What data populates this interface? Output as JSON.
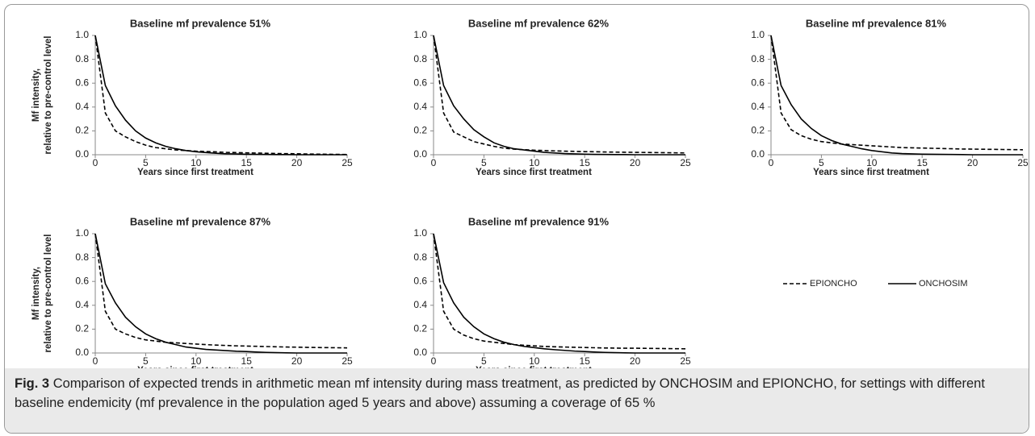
{
  "chart_data": [
    {
      "type": "line",
      "title": "Baseline mf prevalence 51%",
      "xlabel": "Years since first treatment",
      "ylabel": [
        "Mf intensity,",
        "relative to pre-control level"
      ],
      "x": [
        0,
        1,
        2,
        3,
        4,
        5,
        6,
        7,
        8,
        9,
        10,
        11,
        12,
        13,
        14,
        15,
        16,
        17,
        18,
        19,
        20,
        21,
        22,
        23,
        24,
        25
      ],
      "series": [
        {
          "name": "EPIONCHO",
          "color": "#000000",
          "linestyle": "dashed",
          "values": [
            1,
            0.35,
            0.2,
            0.15,
            0.11,
            0.08,
            0.06,
            0.05,
            0.04,
            0.035,
            0.03,
            0.027,
            0.024,
            0.02,
            0.018,
            0.016,
            0.014,
            0.012,
            0.01,
            0.009,
            0.008,
            0.006,
            0.005,
            0.004,
            0.003,
            0.002
          ]
        },
        {
          "name": "ONCHOSIM",
          "color": "#000000",
          "linestyle": "solid",
          "values": [
            1,
            0.58,
            0.41,
            0.29,
            0.2,
            0.14,
            0.1,
            0.07,
            0.05,
            0.035,
            0.025,
            0.018,
            0.012,
            0.008,
            0.006,
            0.004,
            0.003,
            0.002,
            0.001,
            0.001,
            0,
            0,
            0,
            0,
            0,
            0
          ]
        }
      ],
      "xlim": [
        0,
        25
      ],
      "xticks": [
        0,
        5,
        10,
        15,
        20,
        25
      ],
      "ylim": [
        0,
        1
      ],
      "yticks": [
        {
          "value": 0,
          "label": "0.0"
        },
        0.2,
        0.4,
        0.6,
        0.8,
        {
          "value": 1,
          "label": "1.0"
        }
      ]
    },
    {
      "type": "line",
      "title": "Baseline mf prevalence 62%",
      "xlabel": "Years since first treatment",
      "x": [
        0,
        1,
        2,
        3,
        4,
        5,
        6,
        7,
        8,
        9,
        10,
        11,
        12,
        13,
        14,
        15,
        16,
        17,
        18,
        19,
        20,
        21,
        22,
        23,
        24,
        25
      ],
      "series": [
        {
          "name": "EPIONCHO",
          "color": "#000000",
          "linestyle": "dashed",
          "values": [
            1,
            0.35,
            0.19,
            0.15,
            0.11,
            0.09,
            0.07,
            0.055,
            0.047,
            0.042,
            0.038,
            0.035,
            0.032,
            0.03,
            0.028,
            0.026,
            0.025,
            0.023,
            0.022,
            0.021,
            0.02,
            0.019,
            0.018,
            0.017,
            0.016,
            0.015
          ]
        },
        {
          "name": "ONCHOSIM",
          "color": "#000000",
          "linestyle": "solid",
          "values": [
            1,
            0.58,
            0.41,
            0.3,
            0.21,
            0.15,
            0.1,
            0.07,
            0.05,
            0.04,
            0.03,
            0.02,
            0.015,
            0.01,
            0.007,
            0.005,
            0.003,
            0.002,
            0.001,
            0.001,
            0,
            0,
            0,
            0,
            0,
            0
          ]
        }
      ],
      "xlim": [
        0,
        25
      ],
      "xticks": [
        0,
        5,
        10,
        15,
        20,
        25
      ],
      "ylim": [
        0,
        1
      ],
      "yticks": [
        {
          "value": 0,
          "label": "0.0"
        },
        0.2,
        0.4,
        0.6,
        0.8,
        {
          "value": 1,
          "label": "1.0"
        }
      ]
    },
    {
      "type": "line",
      "title": "Baseline mf prevalence 81%",
      "xlabel": "Years since first treatment",
      "x": [
        0,
        1,
        2,
        3,
        4,
        5,
        6,
        7,
        8,
        9,
        10,
        11,
        12,
        13,
        14,
        15,
        16,
        17,
        18,
        19,
        20,
        21,
        22,
        23,
        24,
        25
      ],
      "series": [
        {
          "name": "EPIONCHO",
          "color": "#000000",
          "linestyle": "dashed",
          "values": [
            1,
            0.35,
            0.21,
            0.16,
            0.13,
            0.11,
            0.1,
            0.09,
            0.085,
            0.08,
            0.075,
            0.07,
            0.065,
            0.06,
            0.058,
            0.056,
            0.054,
            0.052,
            0.05,
            0.048,
            0.047,
            0.046,
            0.045,
            0.044,
            0.043,
            0.042
          ]
        },
        {
          "name": "ONCHOSIM",
          "color": "#000000",
          "linestyle": "solid",
          "values": [
            1,
            0.58,
            0.42,
            0.3,
            0.22,
            0.16,
            0.12,
            0.09,
            0.07,
            0.05,
            0.035,
            0.025,
            0.015,
            0.01,
            0.007,
            0.005,
            0.004,
            0.003,
            0.002,
            0.001,
            0,
            0,
            0,
            0,
            0,
            0
          ]
        }
      ],
      "xlim": [
        0,
        25
      ],
      "xticks": [
        0,
        5,
        10,
        15,
        20,
        25
      ],
      "ylim": [
        0,
        1
      ],
      "yticks": [
        {
          "value": 0,
          "label": "0.0"
        },
        0.2,
        0.4,
        0.6,
        0.8,
        {
          "value": 1,
          "label": "1.0"
        }
      ]
    },
    {
      "type": "line",
      "title": "Baseline mf prevalence 87%",
      "xlabel": "Years since first treatment",
      "ylabel": [
        "Mf intensity,",
        "relative to pre-control level"
      ],
      "x": [
        0,
        1,
        2,
        3,
        4,
        5,
        6,
        7,
        8,
        9,
        10,
        11,
        12,
        13,
        14,
        15,
        16,
        17,
        18,
        19,
        20,
        21,
        22,
        23,
        24,
        25
      ],
      "series": [
        {
          "name": "EPIONCHO",
          "color": "#000000",
          "linestyle": "dashed",
          "values": [
            1,
            0.35,
            0.2,
            0.16,
            0.13,
            0.11,
            0.1,
            0.09,
            0.085,
            0.08,
            0.075,
            0.07,
            0.066,
            0.063,
            0.06,
            0.058,
            0.056,
            0.054,
            0.052,
            0.05,
            0.049,
            0.047,
            0.046,
            0.045,
            0.044,
            0.043
          ]
        },
        {
          "name": "ONCHOSIM",
          "color": "#000000",
          "linestyle": "solid",
          "values": [
            1,
            0.58,
            0.42,
            0.3,
            0.22,
            0.16,
            0.12,
            0.09,
            0.07,
            0.05,
            0.04,
            0.03,
            0.025,
            0.02,
            0.015,
            0.012,
            0.008,
            0.005,
            0.003,
            0.001,
            0,
            0,
            0,
            0,
            0,
            0
          ]
        }
      ],
      "xlim": [
        0,
        25
      ],
      "xticks": [
        0,
        5,
        10,
        15,
        20,
        25
      ],
      "ylim": [
        0,
        1
      ],
      "yticks": [
        {
          "value": 0,
          "label": "0.0"
        },
        0.2,
        0.4,
        0.6,
        0.8,
        {
          "value": 1,
          "label": "1.0"
        }
      ]
    },
    {
      "type": "line",
      "title": "Baseline mf prevalence 91%",
      "xlabel": "Years since first treatment",
      "x": [
        0,
        1,
        2,
        3,
        4,
        5,
        6,
        7,
        8,
        9,
        10,
        11,
        12,
        13,
        14,
        15,
        16,
        17,
        18,
        19,
        20,
        21,
        22,
        23,
        24,
        25
      ],
      "series": [
        {
          "name": "EPIONCHO",
          "color": "#000000",
          "linestyle": "dashed",
          "values": [
            1,
            0.35,
            0.2,
            0.15,
            0.12,
            0.1,
            0.09,
            0.08,
            0.07,
            0.065,
            0.06,
            0.055,
            0.052,
            0.05,
            0.048,
            0.046,
            0.044,
            0.042,
            0.041,
            0.04,
            0.04,
            0.039,
            0.038,
            0.037,
            0.036,
            0.035
          ]
        },
        {
          "name": "ONCHOSIM",
          "color": "#000000",
          "linestyle": "solid",
          "values": [
            1,
            0.59,
            0.42,
            0.3,
            0.22,
            0.16,
            0.12,
            0.09,
            0.07,
            0.055,
            0.045,
            0.035,
            0.028,
            0.022,
            0.016,
            0.012,
            0.008,
            0.005,
            0.003,
            0.001,
            0,
            0,
            0,
            0,
            0,
            0
          ]
        }
      ],
      "xlim": [
        0,
        25
      ],
      "xticks": [
        0,
        5,
        10,
        15,
        20,
        25
      ],
      "ylim": [
        0,
        1
      ],
      "yticks": [
        {
          "value": 0,
          "label": "0.0"
        },
        0.2,
        0.4,
        0.6,
        0.8,
        {
          "value": 1,
          "label": "1.0"
        }
      ]
    }
  ],
  "caption": {
    "label": "Fig. 3",
    "text": "Comparison of expected trends in arithmetic mean mf intensity during mass treatment, as predicted by ONCHOSIM and EPIONCHO, for settings with different baseline endemicity (mf prevalence in the population aged 5 years and above) assuming a coverage of 65 %"
  }
}
